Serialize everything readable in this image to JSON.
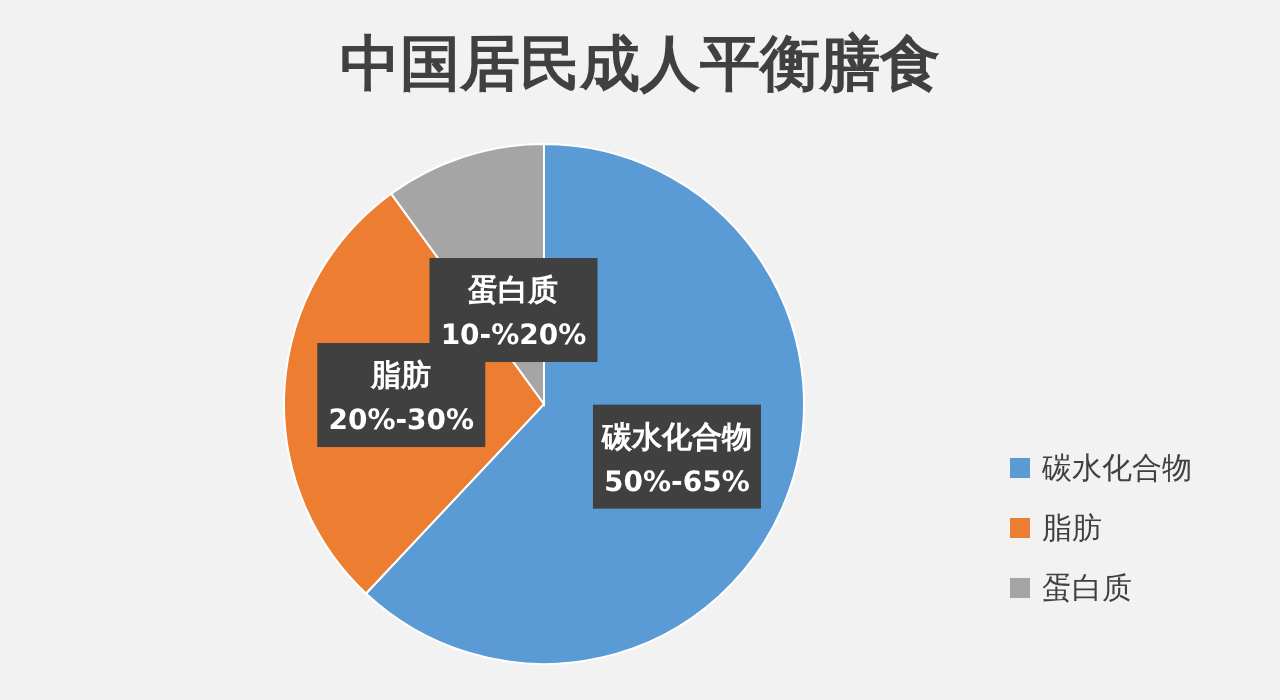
{
  "chart_data": {
    "type": "pie",
    "title": "中国居民成人平衡膳食",
    "categories": [
      "碳水化合物",
      "脂肪",
      "蛋白质"
    ],
    "values": [
      62,
      28,
      10
    ],
    "colors": [
      "#5b9bd5",
      "#ed7d31",
      "#a5a5a5"
    ],
    "annotations": [
      "50%-65%",
      "20%-30%",
      "10-%20%"
    ],
    "legend": "right"
  }
}
